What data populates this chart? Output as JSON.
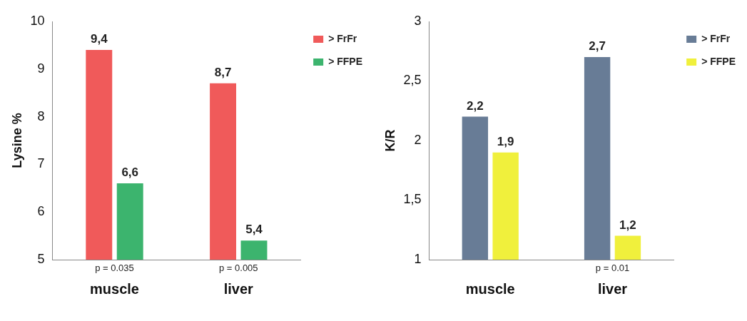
{
  "chart_data": [
    {
      "type": "bar",
      "ylabel": "Lysine %",
      "categories": [
        "muscle",
        "liver"
      ],
      "ylim": [
        5,
        10
      ],
      "yticks": [
        5,
        6,
        7,
        8,
        9,
        10
      ],
      "legend": "top right",
      "grid": false,
      "series": [
        {
          "name": "> FrFr",
          "color": "#f05a5a",
          "values": [
            9.4,
            8.7
          ],
          "value_labels": [
            "9,4",
            "8,7"
          ]
        },
        {
          "name": "> FFPE",
          "color": "#3cb46e",
          "values": [
            6.6,
            5.4
          ],
          "value_labels": [
            "6,6",
            "5,4"
          ]
        }
      ],
      "annotations": [
        {
          "text": "p = 0.035",
          "x": "muscle"
        },
        {
          "text": "p = 0.005",
          "x": "liver"
        }
      ]
    },
    {
      "type": "bar",
      "ylabel": "K/R",
      "categories": [
        "muscle",
        "liver"
      ],
      "ylim": [
        1,
        3
      ],
      "yticks": [
        1,
        {
          "value": 1.5,
          "label": "1,5"
        },
        2,
        {
          "value": 2.5,
          "label": "2,5"
        },
        3
      ],
      "legend": "top right",
      "grid": false,
      "series": [
        {
          "name": "> FrFr",
          "color": "#687c96",
          "values": [
            2.2,
            2.7
          ],
          "value_labels": [
            "2,2",
            "2,7"
          ]
        },
        {
          "name": "> FFPE",
          "color": "#f0f03c",
          "values": [
            1.9,
            1.2
          ],
          "value_labels": [
            "1,9",
            "1,2"
          ]
        }
      ],
      "annotations": [
        {
          "text": "p = 0.01",
          "x": "liver"
        }
      ]
    }
  ]
}
